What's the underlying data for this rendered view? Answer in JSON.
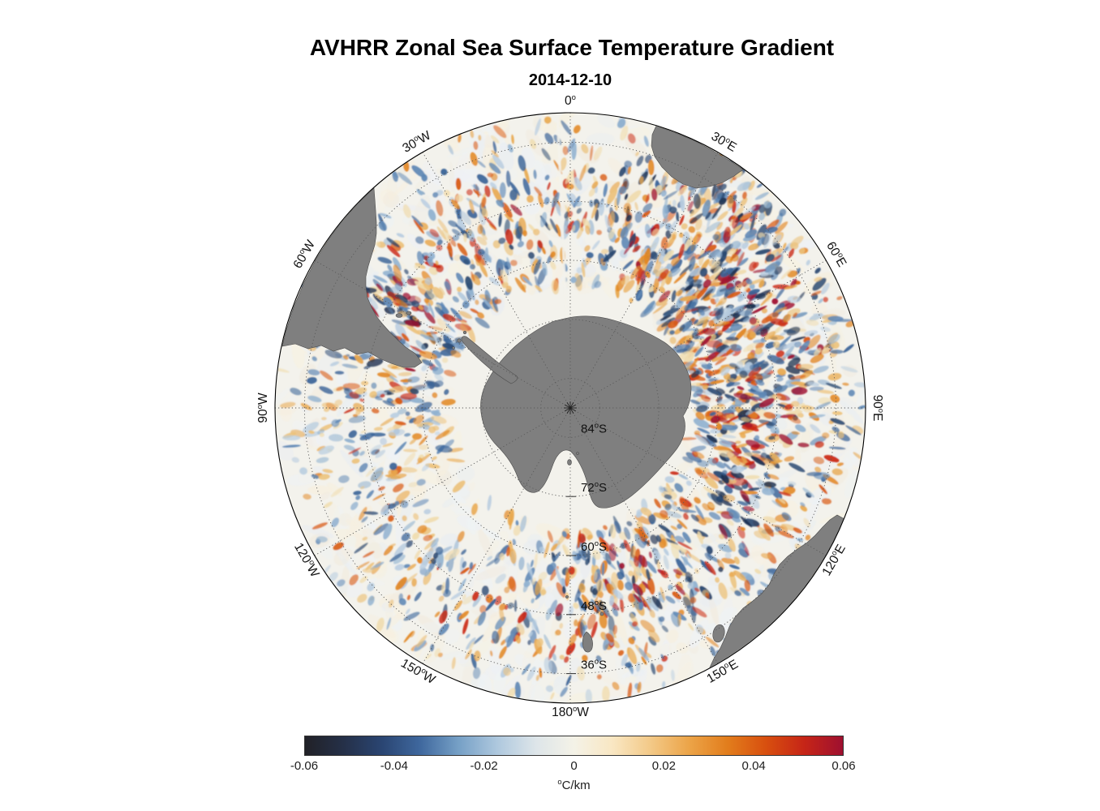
{
  "title": "AVHRR Zonal Sea Surface Temperature Gradient",
  "subtitle": "2014-12-10",
  "chart_data": {
    "type": "heatmap",
    "title": "AVHRR Zonal Sea Surface Temperature Gradient",
    "subtitle": "2014-12-10",
    "date": "2014-12-10",
    "variable": "Zonal sea surface temperature gradient",
    "units": "°C/km",
    "region": "Southern Ocean, south polar stereographic view centered on Antarctica",
    "value_range": [
      -0.06,
      0.06
    ],
    "colorbar": {
      "orientation": "horizontal",
      "position": "bottom",
      "min": -0.06,
      "max": 0.06,
      "ticks": [
        "-0.06",
        "-0.04",
        "-0.02",
        "0",
        "0.02",
        "0.04",
        "0.06"
      ],
      "tick_values": [
        -0.06,
        -0.04,
        -0.02,
        0,
        0.02,
        0.04,
        0.06
      ],
      "label": "°C/km",
      "gradient": [
        "#212127",
        "#253048",
        "#2a4572",
        "#3f689e",
        "#76a0c6",
        "#aec8de",
        "#dde5e9",
        "#f4f2e7",
        "#f9e7c3",
        "#f3c987",
        "#eca448",
        "#e27d1c",
        "#d84f0f",
        "#c62517",
        "#9e1030"
      ]
    },
    "graticule": {
      "style": "dotted",
      "edge_latitude": -30,
      "latitude_rings": [
        {
          "label": "84°S",
          "lat": -84
        },
        {
          "label": "72°S",
          "lat": -72
        },
        {
          "label": "60°S",
          "lat": -60
        },
        {
          "label": "48°S",
          "lat": -48
        },
        {
          "label": "36°S",
          "lat": -36
        }
      ],
      "longitude_spokes": [
        {
          "label": "0°",
          "azimuth": 0
        },
        {
          "label": "30°E",
          "azimuth": 30
        },
        {
          "label": "60°E",
          "azimuth": 60
        },
        {
          "label": "90°E",
          "azimuth": 90
        },
        {
          "label": "120°E",
          "azimuth": 120
        },
        {
          "label": "150°E",
          "azimuth": 150
        },
        {
          "label": "180°W",
          "azimuth": 180
        },
        {
          "label": "150°W",
          "azimuth": 210
        },
        {
          "label": "120°W",
          "azimuth": 240
        },
        {
          "label": "90°W",
          "azimuth": 270
        },
        {
          "label": "60°W",
          "azimuth": 300
        },
        {
          "label": "30°W",
          "azimuth": 330
        }
      ]
    },
    "land_color": "#7f7f7f",
    "ocean_color": "#f3f2ec"
  }
}
